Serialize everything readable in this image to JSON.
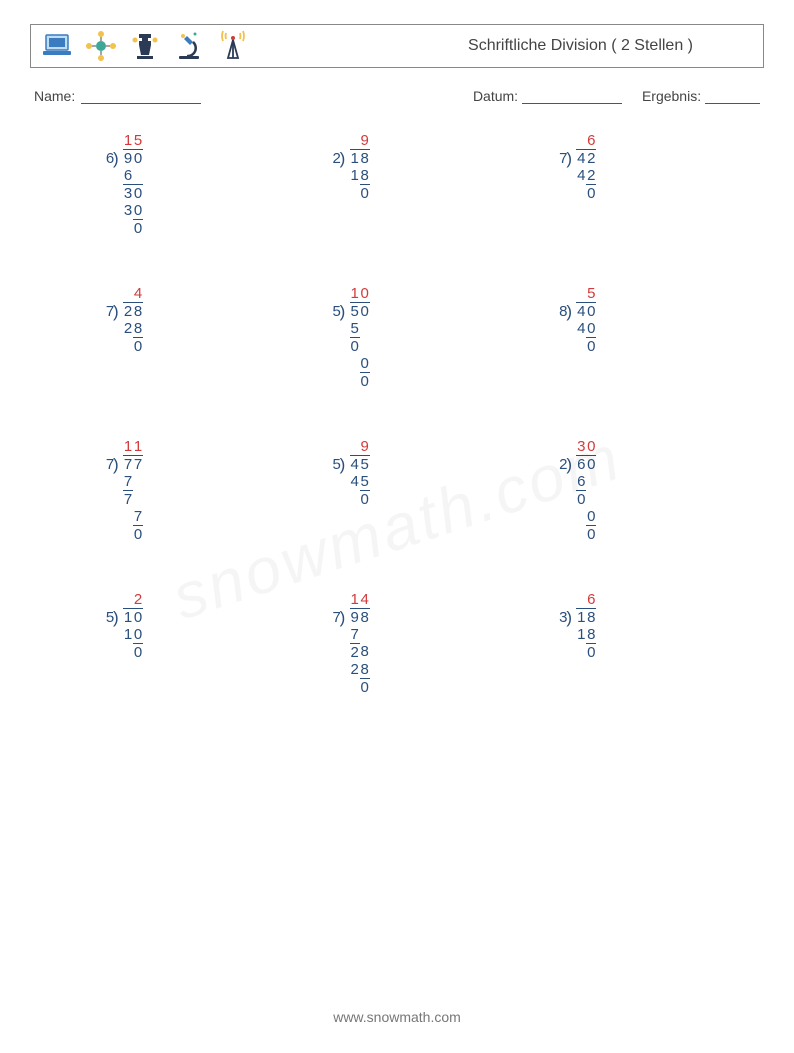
{
  "header": {
    "title": "Schriftliche Division ( 2 Stellen )",
    "icons": [
      "laptop-icon",
      "network-icon",
      "chess-icon",
      "microscope-icon",
      "antenna-icon"
    ],
    "icon_colors": {
      "primary": "#3b7bbf",
      "accent": "#f2c14e",
      "dark": "#2b3a55",
      "teal": "#3fa796"
    }
  },
  "labels": {
    "name": "Name:",
    "date": "Datum:",
    "result": "Ergebnis:"
  },
  "style": {
    "digit_color": "#2a4f7c",
    "quotient_color": "#d23b3b",
    "border_color": "#888888",
    "font_size": 15
  },
  "footer": "www.snowmath.com",
  "watermark": "snowmath.com",
  "problems": [
    {
      "quotient": [
        "",
        "1",
        "5"
      ],
      "divisor_row": [
        "6",
        "",
        "9",
        "0"
      ],
      "steps": [
        {
          "digits": [
            "",
            "",
            "6",
            ""
          ],
          "over": [
            false,
            false,
            false,
            false
          ]
        },
        {
          "digits": [
            "",
            "",
            "3",
            "0"
          ],
          "over": [
            false,
            false,
            true,
            true
          ]
        },
        {
          "digits": [
            "",
            "",
            "3",
            "0"
          ],
          "over": [
            false,
            false,
            false,
            false
          ]
        },
        {
          "digits": [
            "",
            "",
            "",
            "0"
          ],
          "over": [
            false,
            false,
            false,
            true
          ]
        }
      ]
    },
    {
      "quotient": [
        "",
        "",
        "9"
      ],
      "divisor_row": [
        "2",
        "",
        "1",
        "8"
      ],
      "steps": [
        {
          "digits": [
            "",
            "",
            "1",
            "8"
          ],
          "over": [
            false,
            false,
            false,
            false
          ]
        },
        {
          "digits": [
            "",
            "",
            "",
            "0"
          ],
          "over": [
            false,
            false,
            false,
            true
          ]
        }
      ]
    },
    {
      "quotient": [
        "",
        "",
        "6"
      ],
      "divisor_row": [
        "7",
        "",
        "4",
        "2"
      ],
      "steps": [
        {
          "digits": [
            "",
            "",
            "4",
            "2"
          ],
          "over": [
            false,
            false,
            false,
            false
          ]
        },
        {
          "digits": [
            "",
            "",
            "",
            "0"
          ],
          "over": [
            false,
            false,
            false,
            true
          ]
        }
      ]
    },
    {
      "quotient": [
        "",
        "",
        "4"
      ],
      "divisor_row": [
        "7",
        "",
        "2",
        "8"
      ],
      "steps": [
        {
          "digits": [
            "",
            "",
            "2",
            "8"
          ],
          "over": [
            false,
            false,
            false,
            false
          ]
        },
        {
          "digits": [
            "",
            "",
            "",
            "0"
          ],
          "over": [
            false,
            false,
            false,
            true
          ]
        }
      ]
    },
    {
      "quotient": [
        "",
        "1",
        "0"
      ],
      "divisor_row": [
        "5",
        "",
        "5",
        "0"
      ],
      "steps": [
        {
          "digits": [
            "",
            "",
            "5",
            ""
          ],
          "over": [
            false,
            false,
            false,
            false
          ]
        },
        {
          "digits": [
            "",
            "",
            "0",
            ""
          ],
          "over": [
            false,
            false,
            true,
            false
          ]
        },
        {
          "digits": [
            "",
            "",
            "",
            "0"
          ],
          "over": [
            false,
            false,
            false,
            false
          ]
        },
        {
          "digits": [
            "",
            "",
            "",
            "0"
          ],
          "over": [
            false,
            false,
            false,
            true
          ]
        }
      ]
    },
    {
      "quotient": [
        "",
        "",
        "5"
      ],
      "divisor_row": [
        "8",
        "",
        "4",
        "0"
      ],
      "steps": [
        {
          "digits": [
            "",
            "",
            "4",
            "0"
          ],
          "over": [
            false,
            false,
            false,
            false
          ]
        },
        {
          "digits": [
            "",
            "",
            "",
            "0"
          ],
          "over": [
            false,
            false,
            false,
            true
          ]
        }
      ]
    },
    {
      "quotient": [
        "",
        "1",
        "1"
      ],
      "divisor_row": [
        "7",
        "",
        "7",
        "7"
      ],
      "steps": [
        {
          "digits": [
            "",
            "",
            "7",
            ""
          ],
          "over": [
            false,
            false,
            false,
            false
          ]
        },
        {
          "digits": [
            "",
            "",
            "7",
            ""
          ],
          "over": [
            false,
            false,
            true,
            false
          ]
        },
        {
          "digits": [
            "",
            "",
            "",
            "7"
          ],
          "over": [
            false,
            false,
            false,
            false
          ]
        },
        {
          "digits": [
            "",
            "",
            "",
            "0"
          ],
          "over": [
            false,
            false,
            false,
            true
          ]
        }
      ]
    },
    {
      "quotient": [
        "",
        "",
        "9"
      ],
      "divisor_row": [
        "5",
        "",
        "4",
        "5"
      ],
      "steps": [
        {
          "digits": [
            "",
            "",
            "4",
            "5"
          ],
          "over": [
            false,
            false,
            false,
            false
          ]
        },
        {
          "digits": [
            "",
            "",
            "",
            "0"
          ],
          "over": [
            false,
            false,
            false,
            true
          ]
        }
      ]
    },
    {
      "quotient": [
        "",
        "3",
        "0"
      ],
      "divisor_row": [
        "2",
        "",
        "6",
        "0"
      ],
      "steps": [
        {
          "digits": [
            "",
            "",
            "6",
            ""
          ],
          "over": [
            false,
            false,
            false,
            false
          ]
        },
        {
          "digits": [
            "",
            "",
            "0",
            ""
          ],
          "over": [
            false,
            false,
            true,
            false
          ]
        },
        {
          "digits": [
            "",
            "",
            "",
            "0"
          ],
          "over": [
            false,
            false,
            false,
            false
          ]
        },
        {
          "digits": [
            "",
            "",
            "",
            "0"
          ],
          "over": [
            false,
            false,
            false,
            true
          ]
        }
      ]
    },
    {
      "quotient": [
        "",
        "",
        "2"
      ],
      "divisor_row": [
        "5",
        "",
        "1",
        "0"
      ],
      "steps": [
        {
          "digits": [
            "",
            "",
            "1",
            "0"
          ],
          "over": [
            false,
            false,
            false,
            false
          ]
        },
        {
          "digits": [
            "",
            "",
            "",
            "0"
          ],
          "over": [
            false,
            false,
            false,
            true
          ]
        }
      ]
    },
    {
      "quotient": [
        "",
        "1",
        "4"
      ],
      "divisor_row": [
        "7",
        "",
        "9",
        "8"
      ],
      "steps": [
        {
          "digits": [
            "",
            "",
            "7",
            ""
          ],
          "over": [
            false,
            false,
            false,
            false
          ]
        },
        {
          "digits": [
            "",
            "",
            "2",
            "8"
          ],
          "over": [
            false,
            false,
            true,
            false
          ]
        },
        {
          "digits": [
            "",
            "",
            "2",
            "8"
          ],
          "over": [
            false,
            false,
            false,
            false
          ]
        },
        {
          "digits": [
            "",
            "",
            "",
            "0"
          ],
          "over": [
            false,
            false,
            false,
            true
          ]
        }
      ]
    },
    {
      "quotient": [
        "",
        "",
        "6"
      ],
      "divisor_row": [
        "3",
        "",
        "1",
        "8"
      ],
      "steps": [
        {
          "digits": [
            "",
            "",
            "1",
            "8"
          ],
          "over": [
            false,
            false,
            false,
            false
          ]
        },
        {
          "digits": [
            "",
            "",
            "",
            "0"
          ],
          "over": [
            false,
            false,
            false,
            true
          ]
        }
      ]
    }
  ]
}
